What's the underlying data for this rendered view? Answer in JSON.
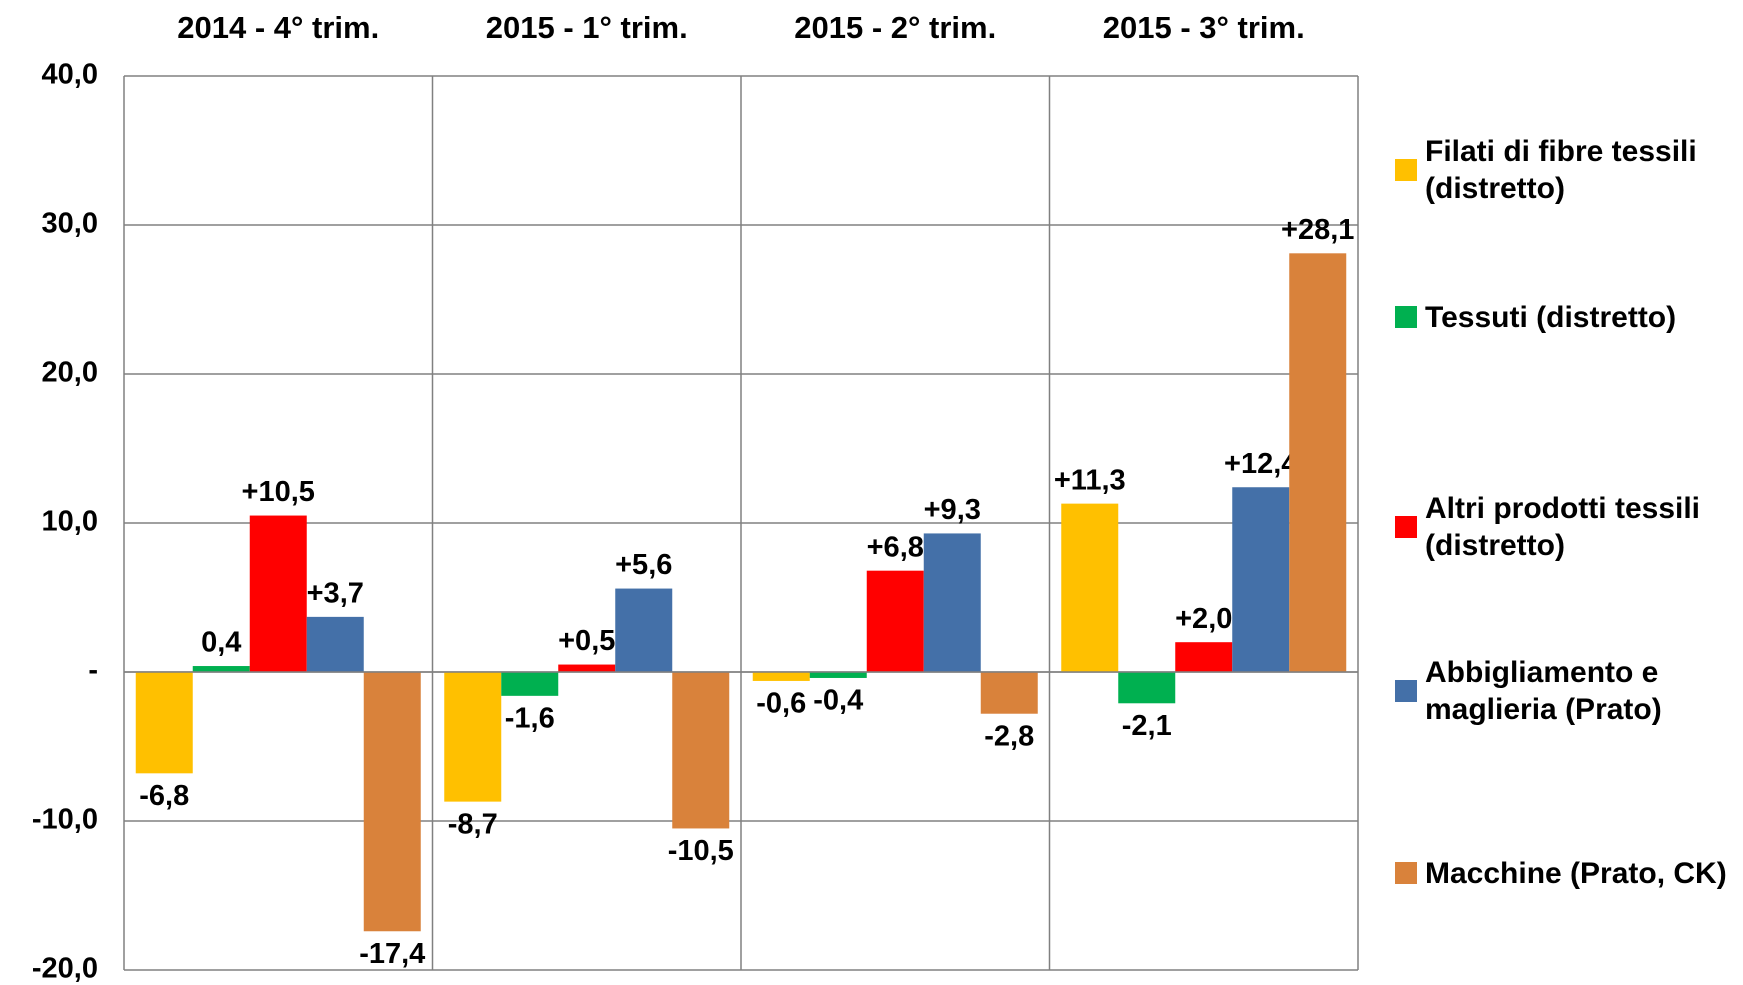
{
  "chart_data": {
    "type": "bar",
    "categories": [
      "2014 - 4° trim.",
      "2015 - 1° trim.",
      "2015 - 2° trim.",
      "2015 - 3° trim."
    ],
    "series": [
      {
        "name": "Filati di fibre tessili (distretto)",
        "color": "#ffc000",
        "values": [
          -6.8,
          -8.7,
          -0.6,
          11.3
        ],
        "value_labels": [
          "-6,8",
          "-8,7",
          "-0,6",
          "+11,3"
        ]
      },
      {
        "name": "Tessuti (distretto)",
        "color": "#00b050",
        "values": [
          0.4,
          -1.6,
          -0.4,
          -2.1
        ],
        "value_labels": [
          "0,4",
          "-1,6",
          "-0,4",
          "-2,1"
        ]
      },
      {
        "name": "Altri prodotti tessili (distretto)",
        "color": "#ff0000",
        "values": [
          10.5,
          0.5,
          6.8,
          2.0
        ],
        "value_labels": [
          "+10,5",
          "+0,5",
          "+6,8",
          "+2,0"
        ]
      },
      {
        "name": "Abbigliamento e maglieria (Prato)",
        "color": "#4470a8",
        "values": [
          3.7,
          5.6,
          9.3,
          12.4
        ],
        "value_labels": [
          "+3,7",
          "+5,6",
          "+9,3",
          "+12,4"
        ]
      },
      {
        "name": "Macchine (Prato, CK)",
        "color": "#d9823b",
        "values": [
          -17.4,
          -10.5,
          -2.8,
          28.1
        ],
        "value_labels": [
          "-17,4",
          "-10,5",
          "-2,8",
          "+28,1"
        ]
      }
    ],
    "ylim": [
      -20,
      40
    ],
    "yticks": [
      {
        "value": -20,
        "label": "-20,0"
      },
      {
        "value": -10,
        "label": "-10,0"
      },
      {
        "value": 0,
        "label": "-"
      },
      {
        "value": 10,
        "label": "10,0"
      },
      {
        "value": 20,
        "label": "20,0"
      },
      {
        "value": 30,
        "label": "30,0"
      },
      {
        "value": 40,
        "label": "40,0"
      }
    ],
    "grid": true
  }
}
